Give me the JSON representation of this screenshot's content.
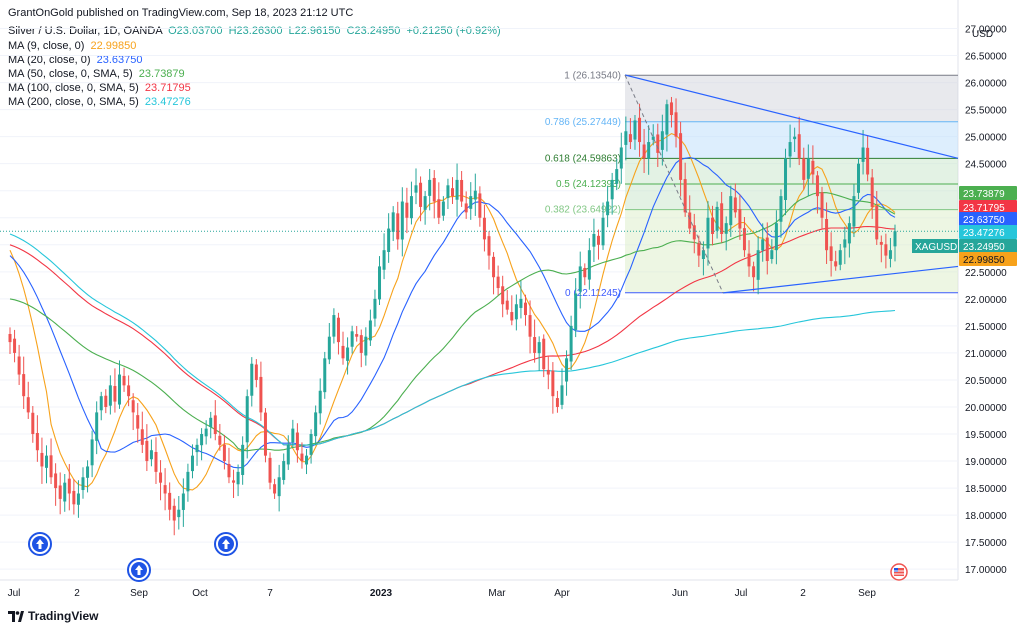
{
  "header": {
    "published": "GrantOnGold published on TradingView.com, Sep 18, 2023 21:12 UTC",
    "symbol_line": "Silver / U.S. Dollar, 1D, OANDA",
    "ohlc": {
      "o": "O23.03700",
      "h": "H23.26300",
      "l": "L22.96150",
      "c": "C23.24950",
      "chg": "+0.21250 (+0.92%)"
    },
    "mas": [
      {
        "label": "MA (9, close, 0)",
        "value": "22.99850",
        "color": "#f7a21b"
      },
      {
        "label": "MA (20, close, 0)",
        "value": "23.63750",
        "color": "#2962ff"
      },
      {
        "label": "MA (50, close, 0, SMA, 5)",
        "value": "23.73879",
        "color": "#4caf50"
      },
      {
        "label": "MA (100, close, 0, SMA, 5)",
        "value": "23.71795",
        "color": "#f23645"
      },
      {
        "label": "MA (200, close, 0, SMA, 5)",
        "value": "23.47276",
        "color": "#26c6da"
      }
    ],
    "usd": "USD"
  },
  "footer": {
    "brand": "TradingView"
  },
  "colors": {
    "up": "#26a69a",
    "down": "#ef5350"
  },
  "chart_data": {
    "type": "candlestick",
    "symbol": "XAGUSD",
    "last": "23.24950",
    "ylim": [
      16.8,
      27.25
    ],
    "y_ticks": [
      "27.00000",
      "26.50000",
      "26.00000",
      "25.50000",
      "25.00000",
      "24.50000",
      "24.00000",
      "23.50000",
      "23.00000",
      "22.50000",
      "22.00000",
      "21.50000",
      "21.00000",
      "20.50000",
      "20.00000",
      "19.50000",
      "19.00000",
      "18.50000",
      "18.00000",
      "17.50000",
      "17.00000"
    ],
    "x_ticks": [
      "Jul",
      "2",
      "Sep",
      "Oct",
      "7",
      "2023",
      "Mar",
      "Apr",
      "Jun",
      "Jul",
      "2",
      "Sep"
    ],
    "price_badges": [
      {
        "label": "XAGUSD",
        "value": "23.24950",
        "color": "#26a69a"
      },
      {
        "value": "23.73879",
        "color": "#4caf50"
      },
      {
        "value": "23.71795",
        "color": "#f23645"
      },
      {
        "value": "23.63750",
        "color": "#2962ff"
      },
      {
        "value": "23.47276",
        "color": "#26c6da"
      },
      {
        "value": "22.99850",
        "color": "#f7a21b"
      }
    ],
    "fib": [
      {
        "level": "1",
        "price": "26.13540"
      },
      {
        "level": "0.786",
        "price": "25.27449"
      },
      {
        "level": "0.618",
        "price": "24.59863"
      },
      {
        "level": "0.5",
        "price": "24.12393"
      },
      {
        "level": "0.382",
        "price": "23.64922"
      },
      {
        "level": "0",
        "price": "22.11245"
      }
    ],
    "closes": [
      21.2,
      21.0,
      20.6,
      20.2,
      19.9,
      19.5,
      19.2,
      18.9,
      19.1,
      18.7,
      18.5,
      18.3,
      18.6,
      18.4,
      18.2,
      18.4,
      18.7,
      18.9,
      19.4,
      19.9,
      20.2,
      20.0,
      20.4,
      20.1,
      20.6,
      20.4,
      20.2,
      19.9,
      19.6,
      19.3,
      19.0,
      19.2,
      18.8,
      18.6,
      18.4,
      18.1,
      17.9,
      18.1,
      18.4,
      18.8,
      19.1,
      19.3,
      19.5,
      19.6,
      19.8,
      19.5,
      19.3,
      19.0,
      18.7,
      18.6,
      18.8,
      19.3,
      20.2,
      20.8,
      20.5,
      19.9,
      19.1,
      18.6,
      18.4,
      18.7,
      19.0,
      19.3,
      19.6,
      19.2,
      19.0,
      19.1,
      19.5,
      19.9,
      20.3,
      20.9,
      21.3,
      21.7,
      21.2,
      20.9,
      21.1,
      21.4,
      21.3,
      21.0,
      21.3,
      21.6,
      22.0,
      22.6,
      22.9,
      23.3,
      23.6,
      23.1,
      23.8,
      23.5,
      23.9,
      24.1,
      23.7,
      23.9,
      24.2,
      23.8,
      23.5,
      23.8,
      24.1,
      23.9,
      24.2,
      23.8,
      23.6,
      23.9,
      24.0,
      23.5,
      23.1,
      22.8,
      22.4,
      22.2,
      21.9,
      21.8,
      21.6,
      21.9,
      22.0,
      21.7,
      21.3,
      21.0,
      21.2,
      20.7,
      20.6,
      20.2,
      20.0,
      20.4,
      20.9,
      21.5,
      22.1,
      22.6,
      22.4,
      22.9,
      23.2,
      23.0,
      23.5,
      23.8,
      24.2,
      24.4,
      24.8,
      25.1,
      24.9,
      25.3,
      24.9,
      24.6,
      24.9,
      25.0,
      24.7,
      25.1,
      25.6,
      25.4,
      25.0,
      24.2,
      23.6,
      23.3,
      23.1,
      22.8,
      22.9,
      23.5,
      23.2,
      23.7,
      23.2,
      23.4,
      23.9,
      23.6,
      23.3,
      22.9,
      22.6,
      22.4,
      22.9,
      23.1,
      22.7,
      22.9,
      23.4,
      23.9,
      24.6,
      24.9,
      25.0,
      24.6,
      24.2,
      24.6,
      24.3,
      23.9,
      23.5,
      22.9,
      22.7,
      22.6,
      22.9,
      23.1,
      23.4,
      23.9,
      24.5,
      24.8,
      24.3,
      23.7,
      23.1,
      23.0,
      22.8,
      22.9,
      23.25
    ],
    "ma_start_values": {
      "ma9": [
        22.9,
        23.0
      ],
      "ma20": [
        22.8,
        23.6
      ],
      "ma50": [
        22.0,
        23.74
      ],
      "ma100": [
        23.0,
        23.72
      ],
      "ma200": [
        23.2,
        23.47
      ]
    }
  }
}
